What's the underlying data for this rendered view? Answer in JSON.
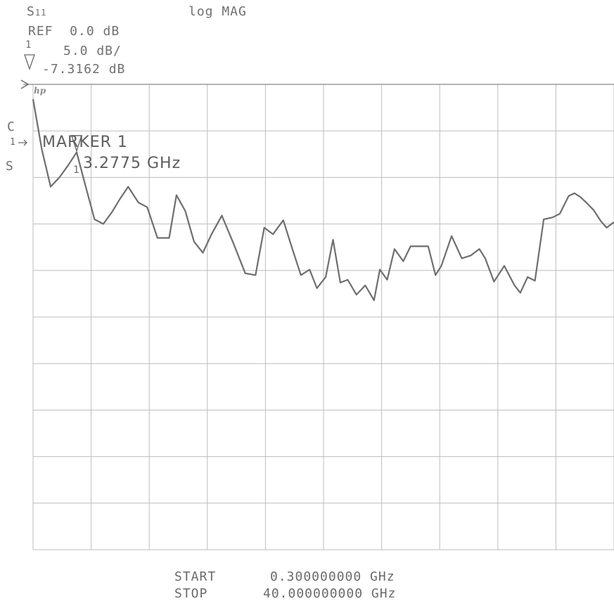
{
  "header": {
    "param": "S",
    "param_sub": "11",
    "format": "log MAG",
    "ref": "REF  0.0 dB",
    "scale_marker_num": "1",
    "scale": "5.0 dB/",
    "marker_value": "-7.3162 dB",
    "logo": "hp"
  },
  "side": {
    "c_label": "C",
    "ref_pos_label": "1",
    "s_label": "S"
  },
  "marker": {
    "title": "MARKER 1",
    "freq": "3.2775 GHz",
    "num": "1"
  },
  "footer": {
    "start_label": "START",
    "start_value": "0.300000000 GHz",
    "stop_label": "STOP",
    "stop_value": "40.000000000 GHz"
  },
  "colors": {
    "trace": "#6e6e6e",
    "grid": "#bdbdbd",
    "text": "#6b6b6b"
  },
  "chart_data": {
    "type": "line",
    "title": "S11 log MAG",
    "x_unit": "GHz",
    "y_unit": "dB",
    "xlim": [
      0.3,
      40.0
    ],
    "ylim": [
      -50,
      0
    ],
    "ref_level_db": 0.0,
    "scale_db_per_div": 5.0,
    "grid": true,
    "marker": {
      "x": 3.2775,
      "y": -7.3162
    },
    "series": [
      {
        "x": [
          0.3,
          0.9,
          1.5,
          2.1,
          2.7,
          3.28,
          3.9,
          4.5,
          5.1,
          5.7,
          6.2,
          6.8,
          7.5,
          8.1,
          8.8,
          9.6,
          10.1,
          10.7,
          11.3,
          11.9,
          12.5,
          13.2,
          14.0,
          14.8,
          15.5,
          16.1,
          16.7,
          17.4,
          18.0,
          18.6,
          19.2,
          19.7,
          20.3,
          20.8,
          21.3,
          21.8,
          22.4,
          23.0,
          23.6,
          24.0,
          24.5,
          25.0,
          25.6,
          26.1,
          26.7,
          27.3,
          27.8,
          28.2,
          28.9,
          29.6,
          30.2,
          30.8,
          31.2,
          31.8,
          32.5,
          33.2,
          33.6,
          34.1,
          34.6,
          35.2,
          35.8,
          36.3,
          36.9,
          37.3,
          37.7,
          38.1,
          38.6,
          39.1,
          39.5,
          40.0
        ],
        "y": [
          -1.6,
          -7.0,
          -11.0,
          -10.0,
          -8.7,
          -7.3,
          -11.0,
          -14.5,
          -15.0,
          -13.7,
          -12.4,
          -11.0,
          -12.7,
          -13.2,
          -16.5,
          -16.5,
          -11.9,
          -13.6,
          -16.9,
          -18.1,
          -16.1,
          -14.1,
          -17.1,
          -20.3,
          -20.5,
          -15.4,
          -16.1,
          -14.6,
          -17.6,
          -20.5,
          -19.9,
          -21.9,
          -20.7,
          -16.7,
          -21.3,
          -21.0,
          -22.6,
          -21.6,
          -23.2,
          -19.9,
          -21.0,
          -17.7,
          -19.0,
          -17.4,
          -17.4,
          -17.4,
          -20.5,
          -19.5,
          -16.3,
          -18.7,
          -18.4,
          -17.7,
          -18.7,
          -21.2,
          -19.5,
          -21.6,
          -22.4,
          -20.7,
          -21.1,
          -14.5,
          -14.3,
          -13.9,
          -12.0,
          -11.7,
          -12.1,
          -12.7,
          -13.5,
          -14.7,
          -15.4,
          -14.8
        ]
      }
    ]
  }
}
